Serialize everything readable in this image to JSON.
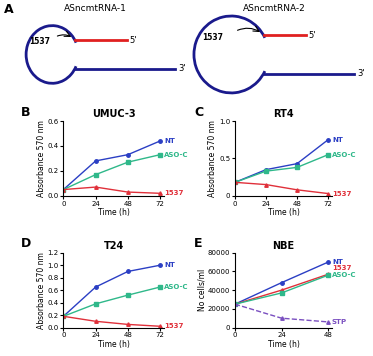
{
  "diagram": {
    "panel": "A",
    "structures": [
      {
        "title": "ASncmtRNA-1",
        "site": "1537",
        "end_top": "5'",
        "end_bottom": "3'"
      },
      {
        "title": "ASncmtRNA-2",
        "site": "1537",
        "end_top": "5'",
        "end_bottom": "3'"
      }
    ]
  },
  "chart_data": [
    {
      "type": "line",
      "panel": "B",
      "title": "UMUC-3",
      "x_label": "Time (h)",
      "y_label": "Absorbance 570 nm",
      "x": [
        0,
        24,
        48,
        72
      ],
      "xlim": [
        0,
        75
      ],
      "xticks": [
        0,
        24,
        48,
        72
      ],
      "ylim": [
        0.0,
        0.6
      ],
      "yticks": [
        0.0,
        0.2,
        0.4,
        0.6
      ],
      "series": [
        {
          "name": "NT",
          "color": "#2b3fc4",
          "marker": "o",
          "line_style": "solid",
          "values": [
            0.05,
            0.28,
            0.33,
            0.44
          ]
        },
        {
          "name": "ASO-C",
          "color": "#2fb88a",
          "marker": "s",
          "line_style": "solid",
          "values": [
            0.05,
            0.17,
            0.27,
            0.33
          ]
        },
        {
          "name": "1537",
          "color": "#e0303a",
          "marker": "^",
          "line_style": "solid",
          "values": [
            0.05,
            0.07,
            0.03,
            0.02
          ]
        }
      ]
    },
    {
      "type": "line",
      "panel": "C",
      "title": "RT4",
      "x_label": "Time (h)",
      "y_label": "Absorbance 570 nm",
      "x": [
        0,
        24,
        48,
        72
      ],
      "xlim": [
        0,
        75
      ],
      "xticks": [
        0,
        24,
        48,
        72
      ],
      "ylim": [
        0,
        1.0
      ],
      "yticks": [
        0,
        0.5,
        1.0
      ],
      "series": [
        {
          "name": "NT",
          "color": "#2b3fc4",
          "marker": "o",
          "line_style": "solid",
          "values": [
            0.18,
            0.35,
            0.43,
            0.75
          ]
        },
        {
          "name": "ASO-C",
          "color": "#2fb88a",
          "marker": "s",
          "line_style": "solid",
          "values": [
            0.18,
            0.33,
            0.38,
            0.55
          ]
        },
        {
          "name": "1537",
          "color": "#e0303a",
          "marker": "^",
          "line_style": "solid",
          "values": [
            0.18,
            0.15,
            0.08,
            0.03
          ]
        }
      ]
    },
    {
      "type": "line",
      "panel": "D",
      "title": "T24",
      "x_label": "Time (h)",
      "y_label": "Absorbance 570 nm",
      "x": [
        0,
        24,
        48,
        72
      ],
      "xlim": [
        0,
        75
      ],
      "xticks": [
        0,
        24,
        48,
        72
      ],
      "ylim": [
        0.0,
        1.2
      ],
      "yticks": [
        0.0,
        0.2,
        0.4,
        0.6,
        0.8,
        1.0,
        1.2
      ],
      "series": [
        {
          "name": "NT",
          "color": "#2b3fc4",
          "marker": "o",
          "line_style": "solid",
          "values": [
            0.18,
            0.65,
            0.9,
            1.0
          ]
        },
        {
          "name": "ASO-C",
          "color": "#2fb88a",
          "marker": "s",
          "line_style": "solid",
          "values": [
            0.18,
            0.38,
            0.52,
            0.65
          ]
        },
        {
          "name": "1537",
          "color": "#e0303a",
          "marker": "^",
          "line_style": "solid",
          "values": [
            0.18,
            0.1,
            0.05,
            0.02
          ]
        }
      ]
    },
    {
      "type": "line",
      "panel": "E",
      "title": "NBE",
      "x_label": "Time (h)",
      "y_label": "No cells/ml",
      "x": [
        0,
        24,
        48
      ],
      "xlim": [
        0,
        50
      ],
      "xticks": [
        0,
        24,
        48
      ],
      "ylim": [
        0,
        80000
      ],
      "yticks": [
        0,
        20000,
        40000,
        60000,
        80000
      ],
      "series": [
        {
          "name": "NT",
          "color": "#2b3fc4",
          "marker": "o",
          "line_style": "solid",
          "values": [
            25000,
            48000,
            70000
          ]
        },
        {
          "name": "1537",
          "color": "#e0303a",
          "marker": "^",
          "line_style": "solid",
          "values": [
            25000,
            40000,
            57000
          ]
        },
        {
          "name": "ASO-C",
          "color": "#2fb88a",
          "marker": "s",
          "line_style": "solid",
          "values": [
            25000,
            37000,
            56000
          ]
        },
        {
          "name": "STP",
          "color": "#7a4fc0",
          "marker": "^",
          "line_style": "dashed",
          "values": [
            25000,
            10000,
            6000
          ]
        }
      ]
    }
  ]
}
